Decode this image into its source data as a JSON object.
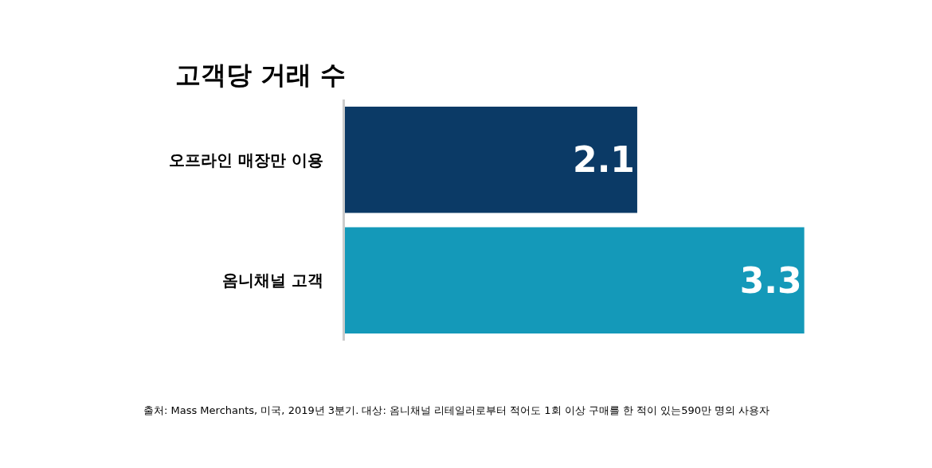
{
  "chart_data": {
    "type": "bar",
    "orientation": "horizontal",
    "title": "고객당 거래 수",
    "categories": [
      "오프라인 매장만 이용",
      "옴니채널 고객"
    ],
    "values": [
      2.1,
      3.3
    ],
    "colors": [
      "#0b3a66",
      "#1499b9"
    ],
    "data_labels": true,
    "legend": false,
    "annotations": [
      "출처: Mass Merchants, 미국, 2019년 3분기. 대상: 옴니채널 리테일러로부터 적어도 1회 이상 구매를 한 적이 있는590만 명의 사용자"
    ]
  }
}
